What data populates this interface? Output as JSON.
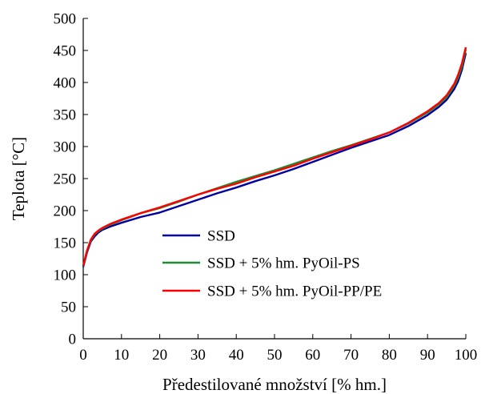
{
  "chart_data": {
    "type": "line",
    "title": "",
    "xlabel": "Předestilované množství [% hm.]",
    "ylabel": "Teplota [°C]",
    "xlim": [
      0,
      100
    ],
    "ylim": [
      0,
      500
    ],
    "xticks": [
      "0",
      "10",
      "20",
      "30",
      "40",
      "50",
      "60",
      "70",
      "80",
      "90",
      "100"
    ],
    "yticks": [
      "0",
      "50",
      "100",
      "150",
      "200",
      "250",
      "300",
      "350",
      "400",
      "450",
      "500"
    ],
    "grid": false,
    "legend_position": "bottom-right",
    "series": [
      {
        "name": "SSD",
        "color": "#0000A0",
        "x": [
          0,
          1,
          2,
          3,
          4,
          5,
          7,
          10,
          15,
          20,
          25,
          30,
          35,
          40,
          45,
          50,
          55,
          60,
          65,
          70,
          75,
          80,
          85,
          90,
          93,
          95,
          97,
          98,
          99,
          100
        ],
        "y": [
          112,
          135,
          152,
          160,
          166,
          170,
          175,
          181,
          190,
          197,
          207,
          217,
          227,
          236,
          246,
          255,
          265,
          276,
          287,
          298,
          308,
          318,
          332,
          349,
          362,
          373,
          390,
          402,
          420,
          446
        ]
      },
      {
        "name": "SSD + 5% hm. PyOil-PS",
        "color": "#1E8C32",
        "x": [
          0,
          1,
          2,
          3,
          4,
          5,
          7,
          10,
          15,
          20,
          25,
          30,
          35,
          40,
          45,
          50,
          55,
          60,
          65,
          70,
          75,
          80,
          85,
          90,
          93,
          95,
          97,
          98,
          99,
          100
        ],
        "y": [
          113,
          137,
          154,
          163,
          168,
          172,
          178,
          185,
          196,
          204,
          214,
          225,
          235,
          245,
          254,
          263,
          273,
          283,
          293,
          302,
          312,
          322,
          336,
          353,
          366,
          377,
          395,
          408,
          425,
          452
        ]
      },
      {
        "name": "SSD + 5% hm. PyOil-PP/PE",
        "color": "#FF0000",
        "x": [
          0,
          1,
          2,
          3,
          4,
          5,
          7,
          10,
          15,
          20,
          25,
          30,
          35,
          40,
          45,
          50,
          55,
          60,
          65,
          70,
          75,
          80,
          85,
          90,
          93,
          95,
          97,
          98,
          99,
          100
        ],
        "y": [
          114,
          138,
          155,
          164,
          169,
          173,
          179,
          186,
          196,
          205,
          215,
          225,
          234,
          242,
          252,
          261,
          270,
          281,
          291,
          301,
          311,
          322,
          337,
          355,
          368,
          380,
          398,
          412,
          430,
          455
        ]
      }
    ]
  }
}
